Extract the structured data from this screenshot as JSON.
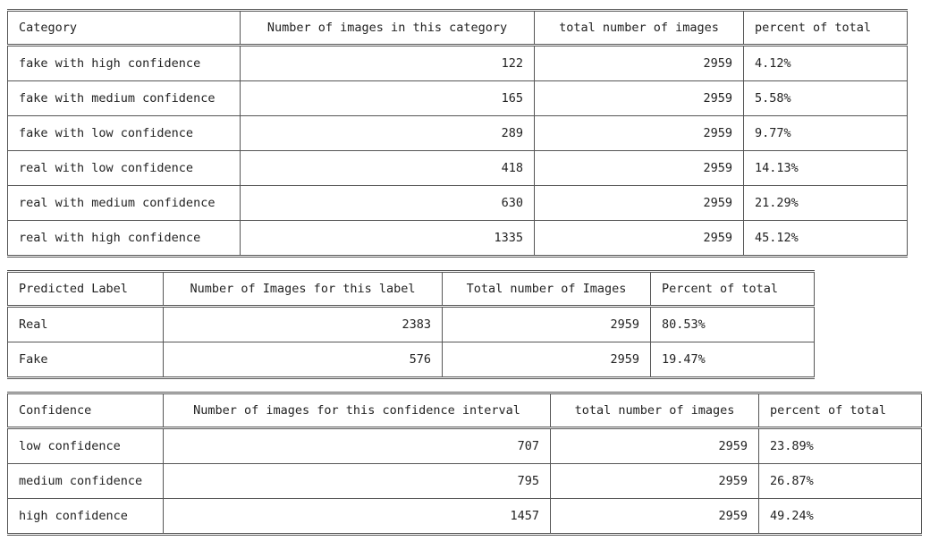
{
  "categories_table": {
    "headers": [
      "Category",
      "Number of images in this category",
      "total number of images",
      "percent of total"
    ],
    "rows": [
      [
        "fake with high confidence",
        "122",
        "2959",
        "4.12%"
      ],
      [
        "fake with medium confidence",
        "165",
        "2959",
        "5.58%"
      ],
      [
        "fake with low confidence",
        "289",
        "2959",
        "9.77%"
      ],
      [
        "real with low confidence",
        "418",
        "2959",
        "14.13%"
      ],
      [
        "real with medium confidence",
        "630",
        "2959",
        "21.29%"
      ],
      [
        "real with high confidence",
        "1335",
        "2959",
        "45.12%"
      ]
    ]
  },
  "labels_table": {
    "headers": [
      "Predicted Label",
      "Number of Images for this label",
      "Total number of Images",
      "Percent of total"
    ],
    "rows": [
      [
        "Real",
        "2383",
        "2959",
        "80.53%"
      ],
      [
        "Fake",
        "576",
        "2959",
        "19.47%"
      ]
    ]
  },
  "confidence_table": {
    "headers": [
      "Confidence",
      "Number of images for this confidence interval",
      "total number of images",
      "percent of total"
    ],
    "rows": [
      [
        "low confidence",
        "707",
        "2959",
        "23.89%"
      ],
      [
        "medium confidence",
        "795",
        "2959",
        "26.87%"
      ],
      [
        "high confidence",
        "1457",
        "2959",
        "49.24%"
      ]
    ]
  }
}
